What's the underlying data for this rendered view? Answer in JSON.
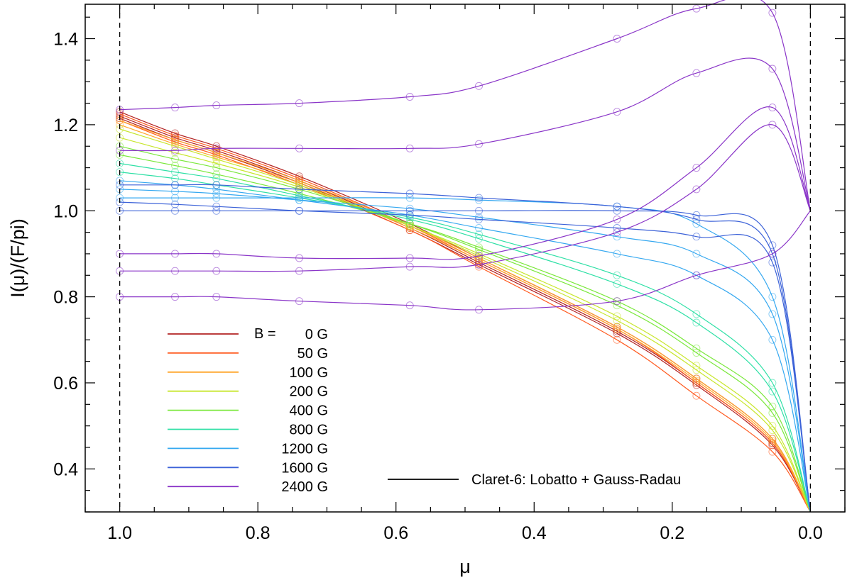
{
  "chart_data": {
    "type": "line",
    "xlabel": "μ",
    "ylabel": "I(μ)/(F/pi)",
    "xlim": [
      1.05,
      -0.05
    ],
    "ylim": [
      0.3,
      1.48
    ],
    "x_reversed": true,
    "x_ticks": [
      "1.0",
      "0.8",
      "0.6",
      "0.4",
      "0.2",
      "0.0"
    ],
    "y_ticks": [
      "0.4",
      "0.6",
      "0.8",
      "1.0",
      "1.2",
      "1.4"
    ],
    "reference_lines": [
      1.0,
      0.0
    ],
    "mu_grid": [
      1.0,
      0.92,
      0.86,
      0.74,
      0.58,
      0.48,
      0.28,
      0.165,
      0.055,
      0.0
    ],
    "legend": {
      "placement": "lower-left",
      "title_prefix": "B =",
      "entries": [
        {
          "label": "0 G",
          "color": "#b22222"
        },
        {
          "label": "50 G",
          "color": "#ff5a1f"
        },
        {
          "label": "100 G",
          "color": "#ffa62b"
        },
        {
          "label": "200 G",
          "color": "#c8e62e"
        },
        {
          "label": "400 G",
          "color": "#7be83c"
        },
        {
          "label": "800 G",
          "color": "#2fe0a6"
        },
        {
          "label": "1200 G",
          "color": "#35a8f0"
        },
        {
          "label": "1600 G",
          "color": "#3c62d8"
        },
        {
          "label": "2400 G",
          "color": "#8a35c8"
        }
      ]
    },
    "fit_label": "Claret-6: Lobatto + Gauss-Radau",
    "fit_color": "#000000",
    "series": [
      {
        "name": "0 G",
        "color": "#b22222",
        "y": [
          [
            1.23,
            1.18,
            1.15,
            1.08,
            0.97,
            0.89,
            0.73,
            0.61,
            0.47,
            0.3
          ],
          [
            1.22,
            1.17,
            1.14,
            1.07,
            0.96,
            0.88,
            0.72,
            0.6,
            0.46,
            0.3
          ],
          [
            1.215,
            1.165,
            1.135,
            1.065,
            0.955,
            0.875,
            0.715,
            0.595,
            0.455,
            0.3
          ]
        ]
      },
      {
        "name": "50 G",
        "color": "#ff5a1f",
        "y": [
          [
            1.225,
            1.175,
            1.145,
            1.075,
            0.965,
            0.885,
            0.725,
            0.6,
            0.46,
            0.3
          ],
          [
            1.21,
            1.16,
            1.13,
            1.06,
            0.955,
            0.87,
            0.7,
            0.57,
            0.44,
            0.3
          ]
        ]
      },
      {
        "name": "100 G",
        "color": "#ffa62b",
        "y": [
          [
            1.21,
            1.165,
            1.135,
            1.07,
            0.965,
            0.89,
            0.73,
            0.61,
            0.47,
            0.3
          ],
          [
            1.2,
            1.155,
            1.125,
            1.065,
            0.96,
            0.885,
            0.725,
            0.605,
            0.465,
            0.3
          ]
        ]
      },
      {
        "name": "200 G",
        "color": "#c8e62e",
        "y": [
          [
            1.19,
            1.15,
            1.12,
            1.06,
            0.965,
            0.895,
            0.745,
            0.63,
            0.49,
            0.3
          ],
          [
            1.17,
            1.135,
            1.11,
            1.055,
            0.965,
            0.9,
            0.755,
            0.64,
            0.5,
            0.3
          ]
        ]
      },
      {
        "name": "400 G",
        "color": "#7be83c",
        "y": [
          [
            1.15,
            1.12,
            1.1,
            1.05,
            0.97,
            0.91,
            0.78,
            0.67,
            0.53,
            0.3
          ],
          [
            1.13,
            1.105,
            1.085,
            1.04,
            0.97,
            0.915,
            0.79,
            0.68,
            0.545,
            0.3
          ]
        ]
      },
      {
        "name": "800 G",
        "color": "#2fe0a6",
        "y": [
          [
            1.11,
            1.09,
            1.075,
            1.035,
            0.98,
            0.935,
            0.83,
            0.74,
            0.58,
            0.3
          ],
          [
            1.09,
            1.075,
            1.06,
            1.03,
            0.985,
            0.945,
            0.85,
            0.76,
            0.6,
            0.3
          ]
        ]
      },
      {
        "name": "1200 G",
        "color": "#35a8f0",
        "y": [
          [
            1.07,
            1.06,
            1.05,
            1.025,
            0.99,
            0.96,
            0.9,
            0.85,
            0.7,
            0.3
          ],
          [
            1.05,
            1.045,
            1.04,
            1.025,
            1.005,
            0.985,
            0.94,
            0.9,
            0.76,
            0.3
          ],
          [
            1.03,
            1.03,
            1.03,
            1.03,
            1.03,
            1.025,
            1.01,
            0.97,
            0.8,
            0.3
          ]
        ]
      },
      {
        "name": "1600 G",
        "color": "#3c62d8",
        "y": [
          [
            1.02,
            1.015,
            1.01,
            1.0,
            0.99,
            0.98,
            0.96,
            0.94,
            0.88,
            0.3
          ],
          [
            1.0,
            1.0,
            1.0,
            1.0,
            1.0,
            1.0,
            1.0,
            0.99,
            0.92,
            0.3
          ],
          [
            1.06,
            1.06,
            1.06,
            1.05,
            1.04,
            1.03,
            1.01,
            0.98,
            0.9,
            0.3
          ]
        ]
      },
      {
        "name": "2400 G",
        "color": "#8a35c8",
        "y": [
          [
            1.235,
            1.24,
            1.245,
            1.25,
            1.265,
            1.29,
            1.4,
            1.47,
            1.46,
            1.0
          ],
          [
            1.14,
            1.14,
            1.145,
            1.145,
            1.145,
            1.155,
            1.23,
            1.32,
            1.33,
            1.0
          ],
          [
            0.8,
            0.8,
            0.8,
            0.79,
            0.78,
            0.77,
            0.79,
            0.85,
            0.9,
            1.0
          ],
          [
            0.86,
            0.86,
            0.86,
            0.86,
            0.87,
            0.875,
            0.95,
            1.05,
            1.2,
            1.0
          ],
          [
            0.9,
            0.9,
            0.9,
            0.89,
            0.89,
            0.895,
            0.98,
            1.1,
            1.24,
            1.0
          ]
        ]
      }
    ]
  }
}
